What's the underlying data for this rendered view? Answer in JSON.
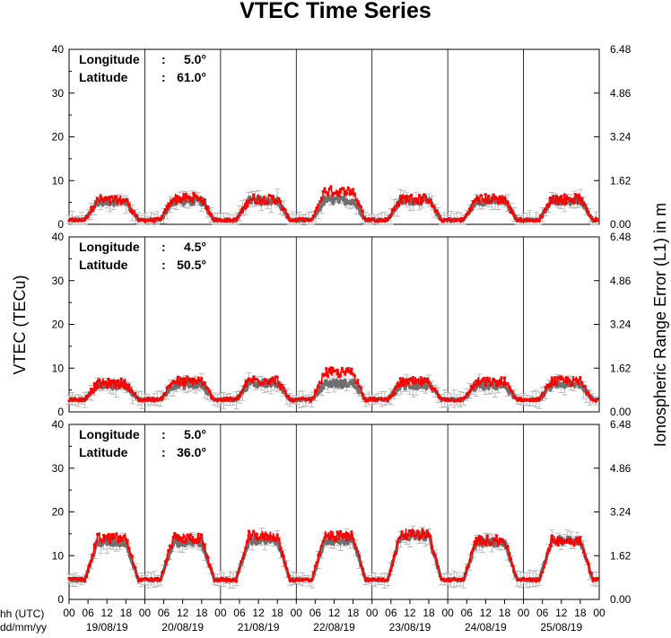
{
  "chart_data": {
    "type": "line",
    "title": "VTEC Time Series",
    "ylabel_left": "VTEC (TECu)",
    "ylabel_right": "Ionospheric Range Error (L1) in m",
    "xlabel_time": "hh (UTC)",
    "xlabel_date": "dd/mm/yy",
    "hour_ticks": [
      "00",
      "06",
      "12",
      "18"
    ],
    "last_hour_tick": "00",
    "dates": [
      "19/08/19",
      "20/08/19",
      "21/08/19",
      "22/08/19",
      "23/08/19",
      "24/08/19",
      "25/08/19"
    ],
    "ylim": [
      0,
      40
    ],
    "ylim_right": [
      0,
      6.48
    ],
    "yticks_left": [
      "0",
      "10",
      "20",
      "30",
      "40"
    ],
    "yticks_right": [
      "0.00",
      "1.62",
      "3.24",
      "4.86",
      "6.48"
    ],
    "series_colors": {
      "measured": "#ff0000",
      "reference": "#707070",
      "error_bars": "#b0b0b0"
    },
    "panels": [
      {
        "longitude_label": "Longitude",
        "longitude_value": "5.0°",
        "latitude_label": "Latitude",
        "latitude_value": "61.0°",
        "measured_daily_max": [
          5.5,
          6.0,
          5.8,
          7.6,
          5.8,
          5.8,
          5.8
        ],
        "reference_daily_max": [
          5.2,
          5.3,
          5.4,
          5.5,
          5.4,
          5.3,
          5.4
        ],
        "night_min": 1.0
      },
      {
        "longitude_label": "Longitude",
        "longitude_value": "4.5°",
        "latitude_label": "Latitude",
        "latitude_value": "50.5°",
        "measured_daily_max": [
          6.5,
          7.0,
          7.2,
          9.0,
          6.8,
          6.8,
          7.0
        ],
        "reference_daily_max": [
          6.0,
          6.2,
          6.5,
          6.5,
          6.0,
          6.0,
          6.3
        ],
        "night_min": 2.8
      },
      {
        "longitude_label": "Longitude",
        "longitude_value": "5.0°",
        "latitude_label": "Latitude",
        "latitude_value": "36.0°",
        "measured_daily_max": [
          14.0,
          14.0,
          14.5,
          14.5,
          15.0,
          13.5,
          13.5
        ],
        "reference_daily_max": [
          13.0,
          13.0,
          13.5,
          13.5,
          14.5,
          13.0,
          13.5
        ],
        "night_min": 4.5
      }
    ]
  }
}
